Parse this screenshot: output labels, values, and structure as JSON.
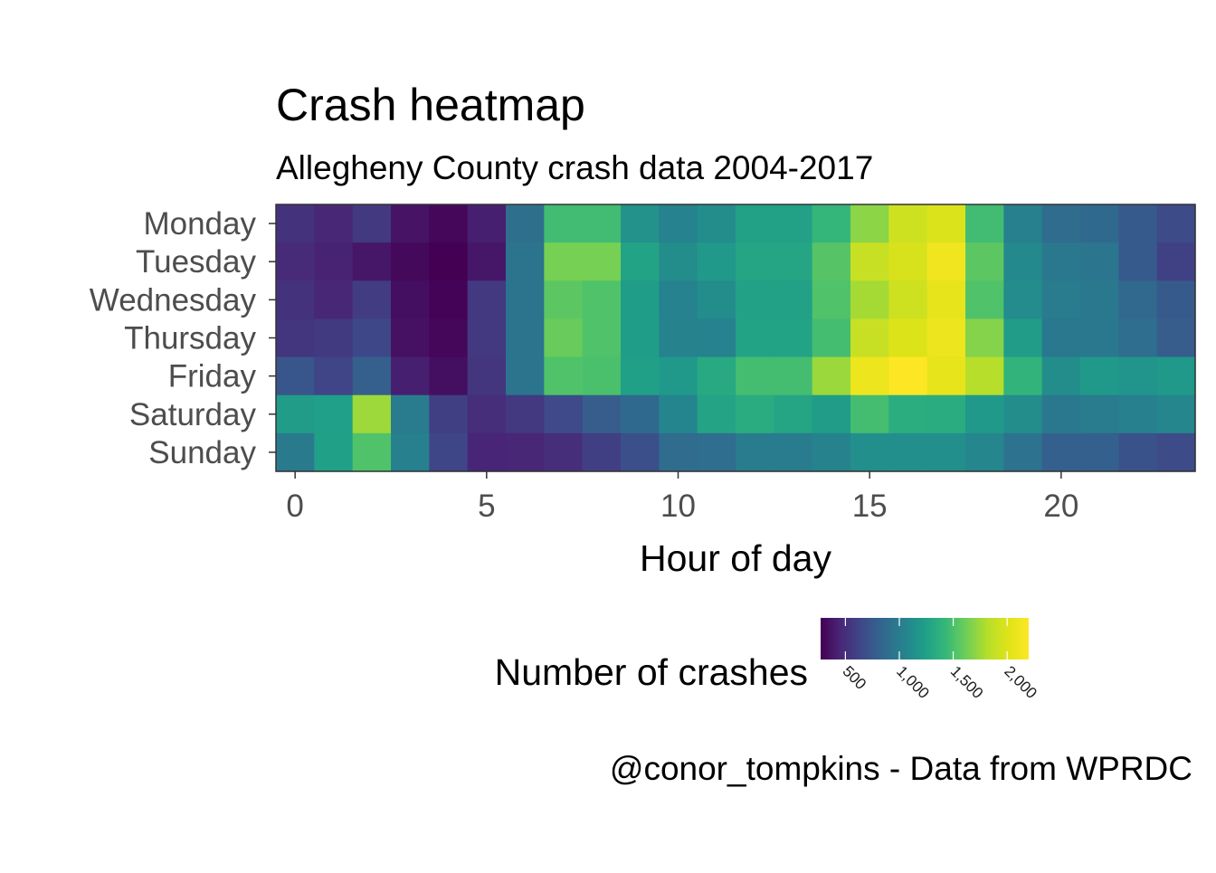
{
  "chart_data": {
    "type": "heatmap",
    "title": "Crash heatmap",
    "subtitle": "Allegheny County crash data 2004-2017",
    "xlabel": "Hour of day",
    "ylabel": "",
    "caption": "@conor_tompkins - Data from WPRDC",
    "x": [
      0,
      1,
      2,
      3,
      4,
      5,
      6,
      7,
      8,
      9,
      10,
      11,
      12,
      13,
      14,
      15,
      16,
      17,
      18,
      19,
      20,
      21,
      22,
      23
    ],
    "x_ticks": [
      0,
      5,
      10,
      15,
      20
    ],
    "x_tick_labels": [
      "0",
      "5",
      "10",
      "15",
      "20"
    ],
    "xlim": [
      -0.5,
      23.5
    ],
    "rows": [
      "Monday",
      "Tuesday",
      "Wednesday",
      "Thursday",
      "Friday",
      "Saturday",
      "Sunday"
    ],
    "values": [
      [
        520,
        460,
        560,
        360,
        300,
        420,
        900,
        1470,
        1470,
        1150,
        1040,
        1120,
        1260,
        1260,
        1420,
        1700,
        1930,
        1990,
        1470,
        1030,
        880,
        860,
        760,
        670
      ],
      [
        480,
        440,
        380,
        310,
        270,
        380,
        930,
        1640,
        1640,
        1270,
        1120,
        1200,
        1290,
        1290,
        1540,
        1900,
        1970,
        2120,
        1560,
        1090,
        970,
        950,
        760,
        610
      ],
      [
        520,
        460,
        580,
        340,
        280,
        560,
        930,
        1560,
        1520,
        1230,
        1040,
        1120,
        1260,
        1260,
        1520,
        1770,
        1930,
        2060,
        1520,
        1110,
        990,
        970,
        850,
        760
      ],
      [
        540,
        570,
        650,
        350,
        300,
        560,
        930,
        1600,
        1520,
        1230,
        1050,
        1040,
        1270,
        1270,
        1480,
        1900,
        2000,
        2100,
        1680,
        1220,
        970,
        970,
        890,
        780
      ],
      [
        740,
        630,
        790,
        420,
        340,
        540,
        940,
        1520,
        1500,
        1250,
        1200,
        1320,
        1480,
        1480,
        1740,
        2100,
        2200,
        2060,
        1820,
        1400,
        1120,
        1200,
        1170,
        1200
      ],
      [
        1220,
        1240,
        1750,
        1000,
        600,
        500,
        560,
        660,
        780,
        860,
        1060,
        1280,
        1340,
        1290,
        1220,
        1480,
        1350,
        1340,
        1200,
        1120,
        970,
        990,
        1030,
        1070
      ],
      [
        980,
        1250,
        1520,
        1030,
        640,
        450,
        460,
        500,
        600,
        700,
        880,
        890,
        1000,
        1000,
        1050,
        1130,
        1130,
        1130,
        1070,
        920,
        800,
        800,
        710,
        670
      ]
    ],
    "scale": {
      "title": "Number of crashes",
      "palette": "viridis",
      "min": 270,
      "max": 2200,
      "breaks": [
        500,
        1000,
        1500,
        2000
      ],
      "break_labels": [
        "500",
        "1,000",
        "1,500",
        "2,000"
      ],
      "legend_position": "bottom"
    },
    "grid": false
  }
}
